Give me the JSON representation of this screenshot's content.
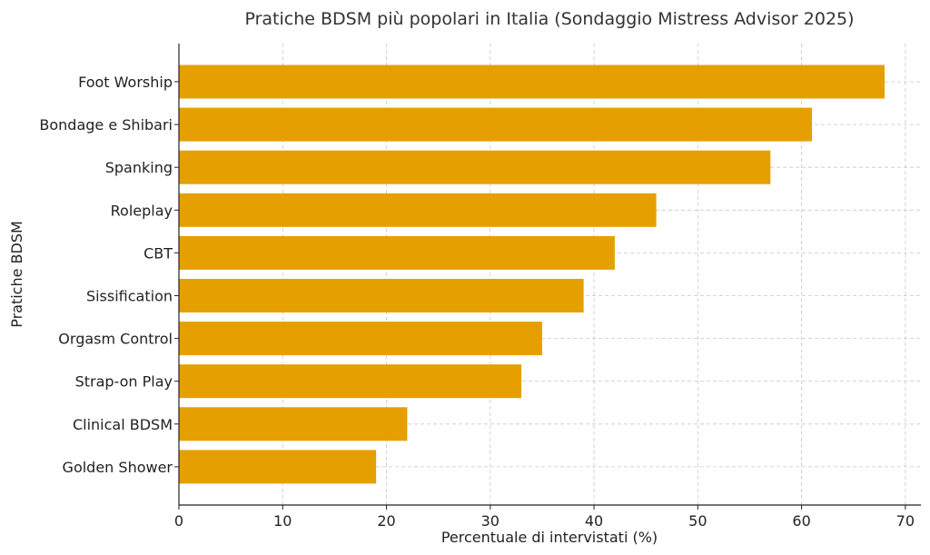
{
  "chart_data": {
    "type": "bar",
    "orientation": "horizontal",
    "title": "Pratiche BDSM più popolari in Italia (Sondaggio Mistress Advisor 2025)",
    "xlabel": "Percentuale di intervistati (%)",
    "ylabel": "Pratiche BDSM",
    "categories": [
      "Foot Worship",
      "Bondage e Shibari",
      "Spanking",
      "Roleplay",
      "CBT",
      "Sissification",
      "Orgasm Control",
      "Strap-on Play",
      "Clinical BDSM",
      "Golden Shower"
    ],
    "values": [
      68,
      61,
      57,
      46,
      42,
      39,
      35,
      33,
      22,
      19
    ],
    "xlim": [
      0,
      71.5
    ],
    "xticks": [
      0,
      10,
      20,
      30,
      40,
      50,
      60,
      70
    ],
    "grid": true,
    "bar_color": "#E5A000"
  }
}
